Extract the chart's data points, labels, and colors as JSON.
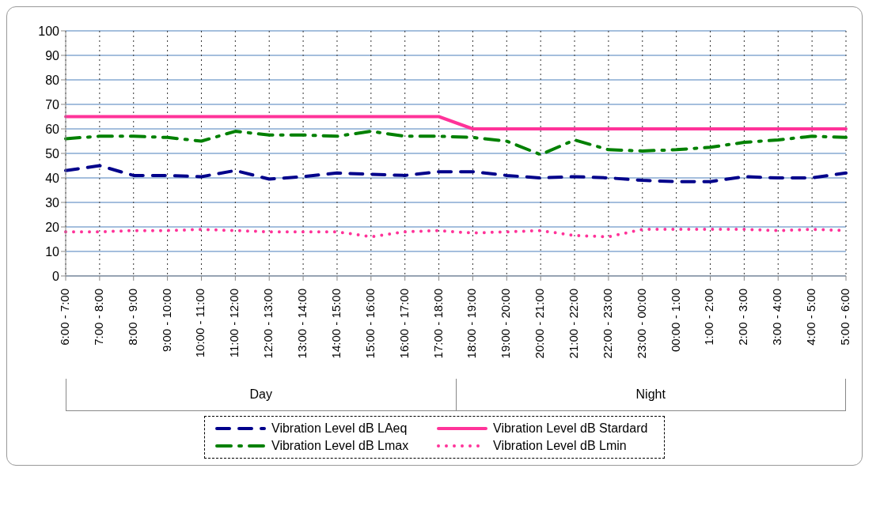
{
  "chart_data": {
    "type": "line",
    "categories": [
      "6:00 - 7:00",
      "7:00 - 8:00",
      "8:00 - 9:00",
      "9:00 - 10:00",
      "10:00 - 11:00",
      "11:00 - 12:00",
      "12:00 - 13:00",
      "13:00 - 14:00",
      "14:00 - 15:00",
      "15:00 - 16:00",
      "16:00 - 17:00",
      "17:00 - 18:00",
      "18:00 - 19:00",
      "19:00 - 20:00",
      "20:00 - 21:00",
      "21:00 - 22:00",
      "22:00 - 23:00",
      "23:00 - 00:00",
      "00:00 - 1:00",
      "1:00 - 2:00",
      "2:00 - 3:00",
      "3:00 - 4:00",
      "4:00 - 5:00",
      "5:00 - 6:00"
    ],
    "series": [
      {
        "name": "Vibration Level dB LAeq",
        "color": "#00008b",
        "line_style": "dashed",
        "values": [
          43,
          45,
          41,
          41,
          40.5,
          43,
          39.5,
          40.5,
          42,
          41.5,
          41,
          42.5,
          42.5,
          41,
          40,
          40.5,
          40,
          39,
          38.5,
          38.5,
          40.5,
          40,
          40,
          42
        ]
      },
      {
        "name": "Vibration Level dB Stardard",
        "color": "#ff3399",
        "line_style": "solid",
        "values": [
          65,
          65,
          65,
          65,
          65,
          65,
          65,
          65,
          65,
          65,
          65,
          65,
          60,
          60,
          60,
          60,
          60,
          60,
          60,
          60,
          60,
          60,
          60,
          60
        ]
      },
      {
        "name": "Vibration Level dB Lmax",
        "color": "#008000",
        "line_style": "dashed",
        "values": [
          56,
          57,
          57,
          56.5,
          55,
          59,
          57.5,
          57.5,
          57,
          59,
          57,
          57,
          56.5,
          55,
          49.5,
          55.5,
          51.5,
          51,
          51.5,
          52.5,
          54.5,
          55.5,
          57,
          56.5
        ]
      },
      {
        "name": "Vibration Level dB Lmin",
        "color": "#ff3399",
        "line_style": "dotted",
        "values": [
          18,
          18,
          18.5,
          18.5,
          19,
          18.5,
          18,
          18,
          18,
          16,
          18,
          18.5,
          17.5,
          18,
          18.5,
          16.5,
          16,
          19,
          19,
          19,
          19,
          18.5,
          19,
          18.5
        ]
      }
    ],
    "annotations": [
      "Day",
      "Night"
    ],
    "ylim": [
      0,
      100
    ],
    "yticks": [
      0,
      10,
      20,
      30,
      40,
      50,
      60,
      70,
      80,
      90,
      100
    ],
    "grid": true,
    "legend": "bottom",
    "marker": "none"
  }
}
